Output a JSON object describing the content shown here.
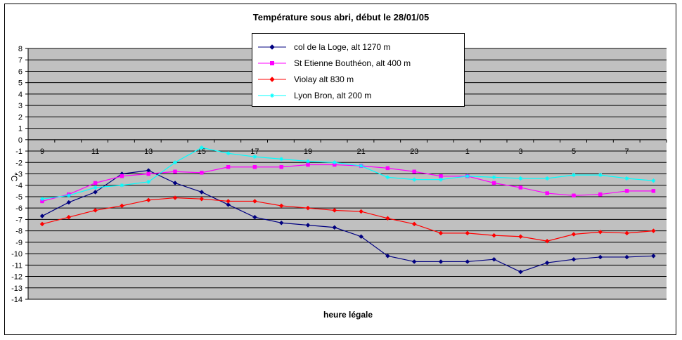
{
  "chart_data": {
    "type": "line",
    "title": "Température sous abri, début le 28/01/05",
    "xlabel": "heure légale",
    "ylabel": "°C",
    "ylim": [
      -14,
      8
    ],
    "yticks": [
      8,
      7,
      6,
      5,
      4,
      3,
      2,
      1,
      0,
      -1,
      -2,
      -3,
      -4,
      -5,
      -6,
      -7,
      -8,
      -9,
      -10,
      -11,
      -12,
      -13,
      -14
    ],
    "x": [
      "9",
      "10",
      "11",
      "12",
      "13",
      "14",
      "15",
      "16",
      "17",
      "18",
      "19",
      "20",
      "21",
      "22",
      "23",
      "0",
      "1",
      "2",
      "3",
      "4",
      "5",
      "6",
      "7",
      "8"
    ],
    "xtick_labels": [
      "9",
      "11",
      "13",
      "15",
      "17",
      "19",
      "21",
      "23",
      "1",
      "3",
      "5",
      "7"
    ],
    "grid": true,
    "plot_background": "#c0c0c0",
    "legend_position": "top-center",
    "series": [
      {
        "name": "col de la Loge, alt 1270 m",
        "color": "#000080",
        "marker": "diamond",
        "values": [
          -6.7,
          -5.5,
          -4.6,
          -3.0,
          -2.7,
          -3.8,
          -4.6,
          -5.7,
          -6.8,
          -7.3,
          -7.5,
          -7.7,
          -8.5,
          -10.2,
          -10.7,
          -10.7,
          -10.7,
          -10.5,
          -11.6,
          -10.8,
          -10.5,
          -10.3,
          -10.3,
          -10.2
        ]
      },
      {
        "name": "St Etienne Bouthéon, alt 400 m",
        "color": "#ff00ff",
        "marker": "square",
        "values": [
          -5.4,
          -4.8,
          -3.8,
          -3.2,
          -3.0,
          -2.8,
          -2.9,
          -2.4,
          -2.4,
          -2.4,
          -2.2,
          -2.2,
          -2.3,
          -2.5,
          -2.8,
          -3.2,
          -3.2,
          -3.8,
          -4.2,
          -4.7,
          -4.9,
          -4.8,
          -4.5,
          -4.5
        ]
      },
      {
        "name": "Violay alt 830 m",
        "color": "#ff0000",
        "marker": "diamond",
        "values": [
          -7.4,
          -6.8,
          -6.2,
          -5.8,
          -5.3,
          -5.1,
          -5.2,
          -5.4,
          -5.4,
          -5.8,
          -6.0,
          -6.2,
          -6.3,
          -6.9,
          -7.4,
          -8.2,
          -8.2,
          -8.4,
          -8.5,
          -8.9,
          -8.3,
          -8.1,
          -8.2,
          -8.0
        ]
      },
      {
        "name": "Lyon Bron, alt 200 m",
        "color": "#00ffff",
        "marker": "star",
        "values": [
          -5.2,
          -4.9,
          -4.2,
          -4.0,
          -3.7,
          -2.0,
          -0.7,
          -1.2,
          -1.5,
          -1.7,
          -1.9,
          -2.0,
          -2.3,
          -3.3,
          -3.5,
          -3.5,
          -3.2,
          -3.3,
          -3.4,
          -3.4,
          -3.1,
          -3.1,
          -3.4,
          -3.6
        ]
      }
    ]
  }
}
